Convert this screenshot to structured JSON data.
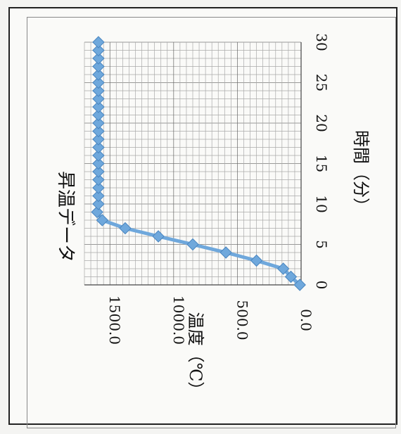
{
  "chart_data": {
    "type": "line",
    "title": "昇温データ",
    "xlabel": "時間（分）",
    "ylabel": "温度（℃）",
    "xlim": [
      0,
      30
    ],
    "ylim": [
      0,
      1700
    ],
    "x_ticks": [
      "0",
      "5",
      "10",
      "15",
      "20",
      "25",
      "30"
    ],
    "y_ticks": [
      "0.0",
      "500.0",
      "1000.0",
      "1500.0"
    ],
    "grid": true,
    "orientation": "rotated 90° clockwise",
    "series": [
      {
        "name": "",
        "color": "#6fa8dc",
        "x": [
          0,
          1,
          2,
          3,
          4,
          5,
          6,
          7,
          8,
          9,
          10,
          11,
          12,
          13,
          14,
          15,
          16,
          17,
          18,
          19,
          20,
          21,
          22,
          23,
          24,
          25,
          26,
          27,
          28,
          29,
          30
        ],
        "y": [
          10,
          80,
          140,
          350,
          590,
          850,
          1120,
          1380,
          1560,
          1600,
          1590,
          1590,
          1590,
          1590,
          1590,
          1590,
          1590,
          1590,
          1590,
          1590,
          1590,
          1590,
          1590,
          1590,
          1590,
          1590,
          1590,
          1590,
          1590,
          1590,
          1590
        ]
      }
    ]
  }
}
